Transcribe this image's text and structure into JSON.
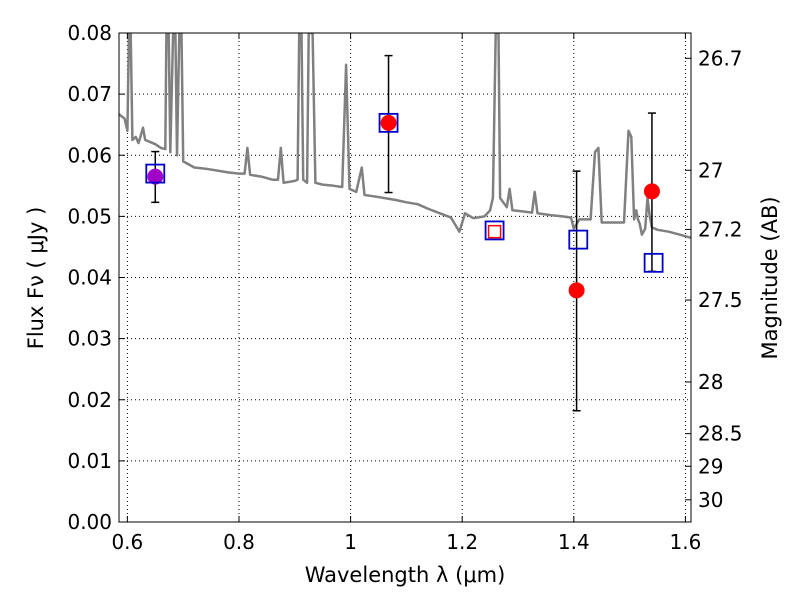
{
  "chart_data": {
    "type": "scatter",
    "xlabel": "Wavelength  λ (μm)",
    "ylabel": "Flux  Fν  ( μJy )",
    "y2label": "Magnitude (AB)",
    "xlim": [
      0.585,
      1.61
    ],
    "ylim": [
      0.0,
      0.08
    ],
    "grid": true,
    "x_ticks": [
      {
        "v": 0.6,
        "label": "0.6"
      },
      {
        "v": 0.8,
        "label": "0.8"
      },
      {
        "v": 1.0,
        "label": "1"
      },
      {
        "v": 1.2,
        "label": "1.2"
      },
      {
        "v": 1.4,
        "label": "1.4"
      },
      {
        "v": 1.6,
        "label": "1.6"
      }
    ],
    "y_ticks": [
      {
        "v": 0.0,
        "label": "0.00"
      },
      {
        "v": 0.01,
        "label": "0.01"
      },
      {
        "v": 0.02,
        "label": "0.02"
      },
      {
        "v": 0.03,
        "label": "0.03"
      },
      {
        "v": 0.04,
        "label": "0.04"
      },
      {
        "v": 0.05,
        "label": "0.05"
      },
      {
        "v": 0.06,
        "label": "0.06"
      },
      {
        "v": 0.07,
        "label": "0.07"
      },
      {
        "v": 0.08,
        "label": "0.08"
      }
    ],
    "y2_ticks": [
      {
        "mag": 26.7,
        "label": "26.7"
      },
      {
        "mag": 27.0,
        "label": "27"
      },
      {
        "mag": 27.2,
        "label": "27.2"
      },
      {
        "mag": 27.5,
        "label": "27.5"
      },
      {
        "mag": 28.0,
        "label": "28"
      },
      {
        "mag": 28.5,
        "label": "28.5"
      },
      {
        "mag": 29.0,
        "label": "29"
      },
      {
        "mag": 30.0,
        "label": "30"
      }
    ],
    "series": [
      {
        "marker": "filled-circle",
        "color": "#ff0000",
        "points": [
          {
            "x": 1.068,
            "y": 0.0653,
            "yerr_low": 0.0539,
            "yerr_high": 0.0763
          },
          {
            "x": 1.405,
            "y": 0.0379,
            "yerr_low": 0.0182,
            "yerr_high": 0.0574
          },
          {
            "x": 1.54,
            "y": 0.0541,
            "yerr_low": 0.041,
            "yerr_high": 0.0669
          }
        ]
      },
      {
        "marker": "filled-circle",
        "color": "#a000c8",
        "points": [
          {
            "x": 0.65,
            "y": 0.0565,
            "yerr_low": 0.0523,
            "yerr_high": 0.0606
          }
        ]
      },
      {
        "marker": "open-square",
        "color": "#ff0000",
        "points": [
          {
            "x": 1.258,
            "y": 0.0475
          }
        ]
      },
      {
        "marker": "open-square",
        "color": "#0000cc",
        "points": [
          {
            "x": 0.65,
            "y": 0.057
          },
          {
            "x": 1.068,
            "y": 0.0653
          },
          {
            "x": 1.258,
            "y": 0.0477
          },
          {
            "x": 1.408,
            "y": 0.0462
          },
          {
            "x": 1.543,
            "y": 0.0424
          }
        ]
      },
      {
        "marker": "line",
        "color": "#808080",
        "points": [
          [
            0.585,
            0.0667
          ],
          [
            0.595,
            0.066
          ],
          [
            0.6,
            0.064
          ],
          [
            0.603,
            0.08
          ],
          [
            0.606,
            0.08
          ],
          [
            0.609,
            0.0625
          ],
          [
            0.615,
            0.063
          ],
          [
            0.62,
            0.062
          ],
          [
            0.625,
            0.0635
          ],
          [
            0.628,
            0.0645
          ],
          [
            0.632,
            0.0625
          ],
          [
            0.64,
            0.0622
          ],
          [
            0.65,
            0.0618
          ],
          [
            0.66,
            0.0612
          ],
          [
            0.668,
            0.061
          ],
          [
            0.67,
            0.08
          ],
          [
            0.674,
            0.08
          ],
          [
            0.677,
            0.0605
          ],
          [
            0.682,
            0.08
          ],
          [
            0.686,
            0.08
          ],
          [
            0.689,
            0.06
          ],
          [
            0.693,
            0.08
          ],
          [
            0.697,
            0.08
          ],
          [
            0.7,
            0.059
          ],
          [
            0.72,
            0.058
          ],
          [
            0.74,
            0.0578
          ],
          [
            0.76,
            0.0575
          ],
          [
            0.78,
            0.0572
          ],
          [
            0.8,
            0.057
          ],
          [
            0.81,
            0.057
          ],
          [
            0.815,
            0.0612
          ],
          [
            0.82,
            0.0568
          ],
          [
            0.84,
            0.0565
          ],
          [
            0.86,
            0.056
          ],
          [
            0.87,
            0.056
          ],
          [
            0.875,
            0.0612
          ],
          [
            0.88,
            0.0555
          ],
          [
            0.9,
            0.0558
          ],
          [
            0.905,
            0.056
          ],
          [
            0.908,
            0.08
          ],
          [
            0.912,
            0.08
          ],
          [
            0.915,
            0.056
          ],
          [
            0.922,
            0.0555
          ],
          [
            0.925,
            0.08
          ],
          [
            0.929,
            0.08
          ],
          [
            0.932,
            0.08
          ],
          [
            0.937,
            0.0555
          ],
          [
            0.95,
            0.0552
          ],
          [
            0.97,
            0.055
          ],
          [
            0.985,
            0.0548
          ],
          [
            0.992,
            0.0748
          ],
          [
            0.998,
            0.0545
          ],
          [
            1.01,
            0.054
          ],
          [
            1.02,
            0.058
          ],
          [
            1.025,
            0.0535
          ],
          [
            1.04,
            0.0533
          ],
          [
            1.06,
            0.053
          ],
          [
            1.08,
            0.0527
          ],
          [
            1.1,
            0.0523
          ],
          [
            1.12,
            0.052
          ],
          [
            1.14,
            0.0512
          ],
          [
            1.16,
            0.0505
          ],
          [
            1.18,
            0.0498
          ],
          [
            1.195,
            0.0475
          ],
          [
            1.205,
            0.0505
          ],
          [
            1.22,
            0.0497
          ],
          [
            1.24,
            0.05
          ],
          [
            1.25,
            0.051
          ],
          [
            1.255,
            0.053
          ],
          [
            1.26,
            0.08
          ],
          [
            1.265,
            0.08
          ],
          [
            1.268,
            0.053
          ],
          [
            1.28,
            0.0515
          ],
          [
            1.285,
            0.0545
          ],
          [
            1.29,
            0.051
          ],
          [
            1.31,
            0.0508
          ],
          [
            1.325,
            0.0506
          ],
          [
            1.33,
            0.054
          ],
          [
            1.335,
            0.0505
          ],
          [
            1.36,
            0.0502
          ],
          [
            1.38,
            0.05
          ],
          [
            1.395,
            0.0498
          ],
          [
            1.4,
            0.048
          ],
          [
            1.41,
            0.0495
          ],
          [
            1.43,
            0.0495
          ],
          [
            1.438,
            0.0605
          ],
          [
            1.444,
            0.0612
          ],
          [
            1.45,
            0.049
          ],
          [
            1.47,
            0.049
          ],
          [
            1.49,
            0.049
          ],
          [
            1.498,
            0.064
          ],
          [
            1.503,
            0.063
          ],
          [
            1.508,
            0.0495
          ],
          [
            1.512,
            0.051
          ],
          [
            1.515,
            0.0495
          ],
          [
            1.518,
            0.0488
          ],
          [
            1.522,
            0.047
          ],
          [
            1.528,
            0.048
          ],
          [
            1.532,
            0.053
          ],
          [
            1.536,
            0.05
          ],
          [
            1.54,
            0.0482
          ],
          [
            1.55,
            0.0478
          ],
          [
            1.57,
            0.0475
          ],
          [
            1.59,
            0.047
          ],
          [
            1.61,
            0.0465
          ]
        ]
      }
    ]
  }
}
